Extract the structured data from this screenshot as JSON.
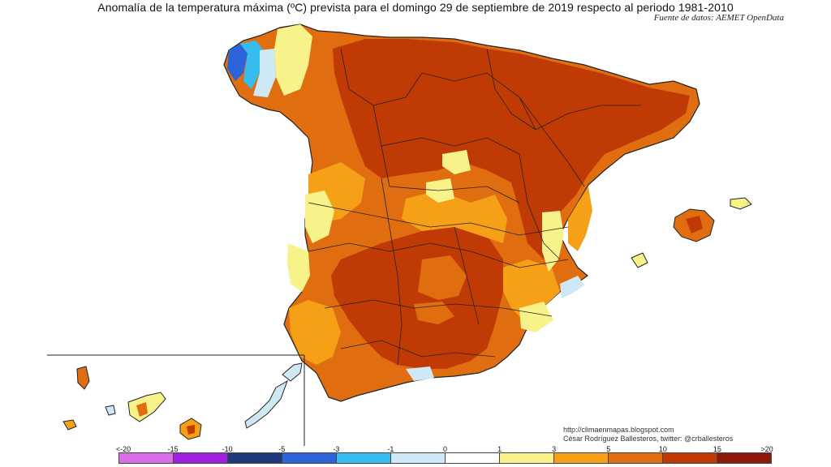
{
  "title": "Anomalía de la temperatura máxima (ºC) prevista para el domingo 29 de septiembre de 2019 respecto al periodo 1981-2010",
  "source": "Fuente de datos: AEMET OpenData",
  "credit": {
    "line1": "http://climaenmapas.blogspot.com",
    "line2": "César Rodríguez Ballesteros, twitter: @crballesteros"
  },
  "legend": {
    "ticks": [
      "<-20",
      "-15",
      "-10",
      "-5",
      "-3",
      "-1",
      "0",
      "1",
      "3",
      "5",
      "10",
      "15",
      ">20"
    ],
    "colors": [
      "#d96ee8",
      "#a020e0",
      "#1f3a7a",
      "#2a64d8",
      "#35bdf0",
      "#cfe8f5",
      "#ffffff",
      "#f7f28a",
      "#f5a017",
      "#e06e10",
      "#c03a06",
      "#8b1a0a"
    ]
  },
  "colors": {
    "slight_warm": "#f7f28a",
    "warm": "#f5a017",
    "hot": "#e06e10",
    "very_hot": "#c03a06",
    "cool": "#cfe8f5",
    "cold": "#35bdf0",
    "very_cold": "#2a64d8"
  }
}
